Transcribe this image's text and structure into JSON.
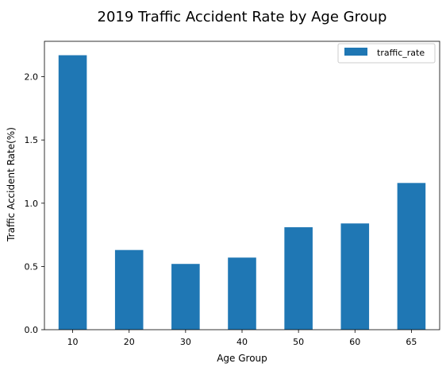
{
  "chart_data": {
    "type": "bar",
    "title": "2019 Traffic Accident Rate by Age Group",
    "xlabel": "Age Group",
    "ylabel": "Traffic Accident Rate(%)",
    "categories": [
      "10",
      "20",
      "30",
      "40",
      "50",
      "60",
      "65"
    ],
    "series": [
      {
        "name": "traffic_rate",
        "values": [
          2.17,
          0.63,
          0.52,
          0.57,
          0.81,
          0.84,
          1.16
        ],
        "color": "#1f77b4"
      }
    ],
    "ylim": [
      0,
      2.28
    ],
    "yticks": [
      0.0,
      0.5,
      1.0,
      1.5,
      2.0
    ],
    "ytick_labels": [
      "0.0",
      "0.5",
      "1.0",
      "1.5",
      "2.0"
    ],
    "legend_position": "top-right",
    "grid": false
  }
}
